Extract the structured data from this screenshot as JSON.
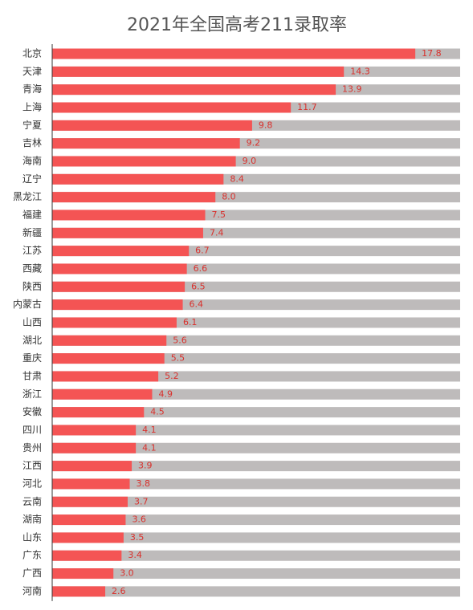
{
  "chart_data": {
    "type": "hbar",
    "title": "2021年全国高考211录取率",
    "categories": [
      "北京",
      "天津",
      "青海",
      "上海",
      "宁夏",
      "吉林",
      "海南",
      "辽宁",
      "黑龙江",
      "福建",
      "新疆",
      "江苏",
      "西藏",
      "陕西",
      "内蒙古",
      "山西",
      "湖北",
      "重庆",
      "甘肃",
      "浙江",
      "安徽",
      "四川",
      "贵州",
      "江西",
      "河北",
      "云南",
      "湖南",
      "山东",
      "广东",
      "广西",
      "河南"
    ],
    "values": [
      17.8,
      14.3,
      13.9,
      11.7,
      9.8,
      9.2,
      9.0,
      8.4,
      8.0,
      7.5,
      7.4,
      6.7,
      6.6,
      6.5,
      6.4,
      6.1,
      5.6,
      5.5,
      5.2,
      4.9,
      4.5,
      4.1,
      4.1,
      3.9,
      3.8,
      3.7,
      3.6,
      3.5,
      3.4,
      3.0,
      2.6
    ],
    "value_labels": [
      "17.8",
      "14.3",
      "13.9",
      "11.7",
      "9.8",
      "9.2",
      "9.0",
      "8.4",
      "8.0",
      "7.5",
      "7.4",
      "6.7",
      "6.6",
      "6.5",
      "6.4",
      "6.1",
      "5.6",
      "5.5",
      "5.2",
      "4.9",
      "4.5",
      "4.1",
      "4.1",
      "3.9",
      "3.8",
      "3.7",
      "3.6",
      "3.5",
      "3.4",
      "3.0",
      "2.6"
    ],
    "color": "#f45454",
    "track_color": "#bebbbb",
    "xlim": [
      0,
      20
    ]
  }
}
